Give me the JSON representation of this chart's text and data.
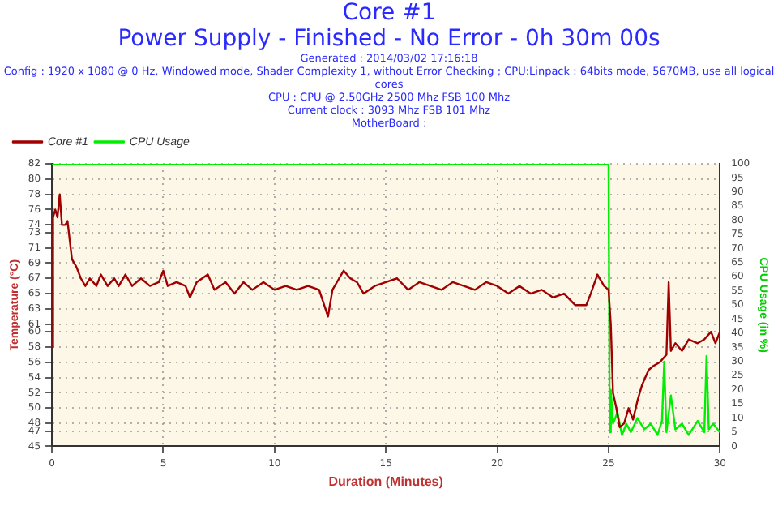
{
  "chart_data": {
    "type": "line",
    "title": "Core #1",
    "subtitle": "Power Supply - Finished - No Error - 0h 30m 00s",
    "annotations": [
      "Generated : 2014/03/02 17:16:18",
      "Config : 1920 x 1080 @ 0 Hz, Windowed mode, Shader Complexity 1, without Error Checking ; CPU:Linpack : 64bits mode, 5670MB, use all logical cores",
      "CPU : CPU @ 2.50GHz 2500 Mhz FSB 100 Mhz",
      "Current clock : 3093 Mhz FSB 101 Mhz",
      "MotherBoard :"
    ],
    "xlabel": "Duration (Minutes)",
    "ylabel": "Temperature (°C)",
    "y2label": "CPU Usage (in %)",
    "xlim": [
      0,
      30
    ],
    "xticks": [
      0,
      5,
      10,
      15,
      20,
      25,
      30
    ],
    "ylim": [
      45,
      82
    ],
    "yticks": [
      45,
      47,
      48,
      50,
      52,
      54,
      56,
      58,
      60,
      61,
      63,
      65,
      67,
      69,
      71,
      73,
      74,
      76,
      78,
      80,
      82
    ],
    "y2lim": [
      0,
      100
    ],
    "y2ticks": [
      0,
      5,
      10,
      15,
      20,
      25,
      30,
      35,
      40,
      45,
      50,
      55,
      60,
      65,
      70,
      75,
      80,
      85,
      90,
      95,
      100
    ],
    "grid": true,
    "legend": "top left",
    "marker": "none",
    "line_style": "solid",
    "series": [
      {
        "name": "Core #1",
        "color": "#a00000",
        "x": [
          0,
          0.05,
          0.15,
          0.25,
          0.35,
          0.45,
          0.6,
          0.7,
          0.8,
          0.9,
          1.0,
          1.1,
          1.3,
          1.5,
          1.7,
          2.0,
          2.2,
          2.5,
          2.8,
          3.0,
          3.3,
          3.6,
          4,
          4.4,
          4.8,
          5.0,
          5.2,
          5.6,
          6.0,
          6.2,
          6.5,
          7,
          7.3,
          7.8,
          8.2,
          8.6,
          9,
          9.5,
          10,
          10.5,
          11,
          11.5,
          12,
          12.4,
          12.6,
          12.9,
          13.1,
          13.4,
          13.7,
          14,
          14.5,
          15,
          15.5,
          16,
          16.5,
          17,
          17.5,
          18,
          18.5,
          19,
          19.5,
          20,
          20.5,
          21,
          21.5,
          22,
          22.5,
          23,
          23.5,
          24,
          24.2,
          24.5,
          24.8,
          25,
          25.1,
          25.2,
          25.35,
          25.5,
          25.7,
          25.9,
          26.1,
          26.3,
          26.5,
          26.8,
          27,
          27.3,
          27.6,
          27.7,
          27.8,
          28,
          28.3,
          28.6,
          29,
          29.3,
          29.6,
          29.8,
          30
        ],
        "values": [
          58,
          75,
          76,
          75,
          78,
          74,
          74,
          74.5,
          72,
          69.5,
          69,
          68.5,
          67,
          66,
          67,
          66,
          67.5,
          66,
          67,
          66,
          67.5,
          66,
          67,
          66,
          66.5,
          68,
          66,
          66.5,
          66,
          64.5,
          66.5,
          67.5,
          65.5,
          66.5,
          65,
          66.5,
          65.5,
          66.5,
          65.5,
          66,
          65.5,
          66,
          65.5,
          62,
          65.5,
          67,
          68,
          67,
          66.5,
          65,
          66,
          66.5,
          67,
          65.5,
          66.5,
          66,
          65.5,
          66.5,
          66,
          65.5,
          66.5,
          66,
          65,
          66,
          65,
          65.5,
          64.5,
          65,
          63.5,
          63.5,
          65,
          67.5,
          66,
          65.5,
          61,
          52,
          50,
          47.5,
          48,
          50,
          48.5,
          51,
          53,
          55,
          55.5,
          56,
          57,
          66.5,
          57.5,
          58.5,
          57.5,
          59,
          58.5,
          59,
          60,
          58.5,
          60
        ]
      },
      {
        "name": "CPU Usage",
        "color": "#00ee00",
        "axis": "y2",
        "x": [
          0,
          25,
          25.05,
          25.1,
          25.2,
          25.4,
          25.6,
          25.8,
          26,
          26.3,
          26.6,
          26.9,
          27.2,
          27.4,
          27.5,
          27.6,
          27.8,
          28,
          28.3,
          28.6,
          29,
          29.3,
          29.4,
          29.5,
          29.7,
          30
        ],
        "values": [
          100,
          100,
          5,
          20,
          8,
          12,
          4,
          8,
          5,
          10,
          6,
          8,
          4,
          9,
          30,
          5,
          18,
          6,
          8,
          4,
          9,
          5,
          32,
          6,
          8,
          5
        ]
      }
    ]
  }
}
